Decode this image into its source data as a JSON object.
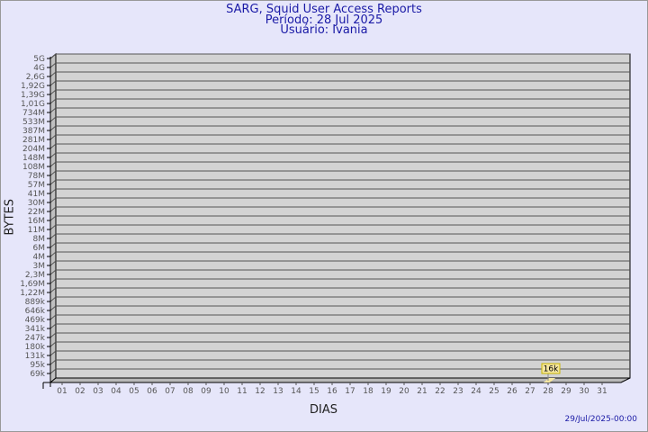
{
  "header": {
    "title": "SARG, Squid User Access Reports",
    "period": "Período: 28 Jul 2025",
    "user": "Usuário: Ivania"
  },
  "footer": {
    "timestamp": "29/Jul/2025-00:00"
  },
  "colors": {
    "background": "#e6e6fa",
    "wall": "#d3d3d3",
    "side_wall": "#c0c0c0",
    "bar": "#f5e6a0",
    "label_border": "#c8b400",
    "title": "#1a1aa6"
  },
  "chart_data": {
    "type": "bar",
    "title": "SARG, Squid User Access Reports",
    "xlabel": "DIAS",
    "ylabel": "BYTES",
    "y_scale": "log",
    "y_tick_labels": [
      "5G",
      "4G",
      "2,6G",
      "1,92G",
      "1,39G",
      "1,01G",
      "734M",
      "533M",
      "387M",
      "281M",
      "204M",
      "148M",
      "108M",
      "78M",
      "57M",
      "41M",
      "30M",
      "22M",
      "16M",
      "11M",
      "8M",
      "6M",
      "4M",
      "3M",
      "2,3M",
      "1,69M",
      "1,22M",
      "889k",
      "646k",
      "469k",
      "341k",
      "247k",
      "180k",
      "131k",
      "95k",
      "69k"
    ],
    "categories": [
      "01",
      "02",
      "03",
      "04",
      "05",
      "06",
      "07",
      "08",
      "09",
      "10",
      "11",
      "12",
      "13",
      "14",
      "15",
      "16",
      "17",
      "18",
      "19",
      "20",
      "21",
      "22",
      "23",
      "24",
      "25",
      "26",
      "27",
      "28",
      "29",
      "30",
      "31"
    ],
    "values": [
      null,
      null,
      null,
      null,
      null,
      null,
      null,
      null,
      null,
      null,
      null,
      null,
      null,
      null,
      null,
      null,
      null,
      null,
      null,
      null,
      null,
      null,
      null,
      null,
      null,
      null,
      null,
      16000,
      null,
      null,
      null
    ],
    "data_labels": {
      "28": "16k"
    },
    "grid": true
  }
}
